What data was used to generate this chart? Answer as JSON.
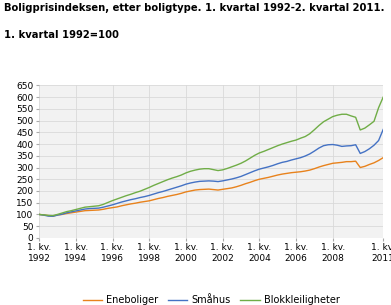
{
  "title_line1": "Boligprisindeksen, etter boligtype. 1. kvartal 1992-2. kvartal 2011.",
  "title_line2": "1. kvartal 1992=100",
  "ylim": [
    0,
    650
  ],
  "yticks": [
    0,
    50,
    100,
    150,
    200,
    250,
    300,
    350,
    400,
    450,
    500,
    550,
    600,
    650
  ],
  "xtick_labels": [
    "1. kv.\n1992",
    "1. kv.\n1994",
    "1. kv.\n1996",
    "1. kv.\n1998",
    "1. kv.\n2000",
    "1. kv.\n2002",
    "1. kv.\n2004",
    "1. kv.\n2006",
    "1. kv.\n2008",
    "1. kv.\n2011"
  ],
  "xtick_positions": [
    0,
    8,
    16,
    24,
    32,
    40,
    48,
    56,
    64,
    75
  ],
  "legend": [
    "Eneboliger",
    "Småhus",
    "Blokkleiligheter"
  ],
  "colors": [
    "#E8821C",
    "#4472C4",
    "#70AD47"
  ],
  "background_color": "#ffffff",
  "grid_color": "#d9d9d9",
  "plot_bg": "#F2F2F2",
  "eneboliger": [
    100,
    98,
    95,
    93,
    98,
    100,
    104,
    107,
    110,
    113,
    116,
    117,
    118,
    119,
    122,
    126,
    129,
    132,
    137,
    141,
    145,
    148,
    152,
    155,
    158,
    163,
    168,
    172,
    177,
    181,
    185,
    190,
    196,
    200,
    204,
    206,
    207,
    208,
    206,
    204,
    207,
    210,
    213,
    218,
    224,
    231,
    237,
    244,
    250,
    254,
    258,
    263,
    268,
    272,
    275,
    278,
    280,
    282,
    285,
    289,
    295,
    302,
    308,
    313,
    318,
    320,
    322,
    325,
    325,
    327,
    300,
    305,
    313,
    320,
    330,
    342
  ],
  "smahus": [
    100,
    97,
    93,
    92,
    97,
    101,
    107,
    111,
    115,
    119,
    123,
    125,
    126,
    127,
    131,
    136,
    141,
    147,
    153,
    158,
    163,
    167,
    172,
    176,
    181,
    187,
    193,
    198,
    204,
    210,
    216,
    222,
    229,
    234,
    238,
    241,
    242,
    243,
    242,
    240,
    243,
    247,
    251,
    256,
    262,
    270,
    278,
    286,
    293,
    298,
    303,
    309,
    316,
    322,
    326,
    332,
    337,
    342,
    349,
    358,
    370,
    383,
    393,
    397,
    398,
    395,
    390,
    392,
    393,
    397,
    360,
    368,
    380,
    395,
    415,
    462
  ],
  "blokk": [
    100,
    98,
    96,
    95,
    100,
    106,
    112,
    116,
    121,
    126,
    131,
    133,
    135,
    137,
    143,
    151,
    159,
    166,
    173,
    180,
    186,
    193,
    199,
    207,
    215,
    224,
    232,
    240,
    248,
    255,
    261,
    268,
    277,
    284,
    289,
    293,
    295,
    295,
    291,
    287,
    290,
    296,
    303,
    310,
    318,
    328,
    340,
    352,
    362,
    369,
    377,
    385,
    393,
    400,
    406,
    412,
    417,
    425,
    432,
    444,
    461,
    479,
    495,
    506,
    517,
    523,
    527,
    527,
    520,
    514,
    460,
    468,
    482,
    497,
    555,
    600
  ]
}
